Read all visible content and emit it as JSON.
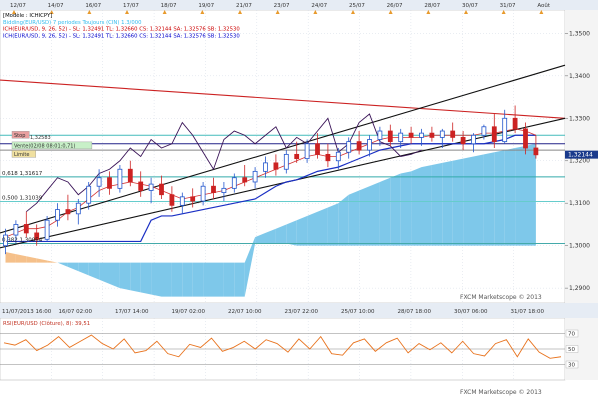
{
  "chart_data": [
    {
      "type": "candlestick",
      "title": "EUR/USD",
      "legend_lines": [
        {
          "text": "[Modèle : ICHICPY]",
          "color": "#000000"
        },
        {
          "text": "Bidding(EUR/USD) 7 periodes Toujours (CIN) 1.3/000",
          "color": "#33bbee"
        },
        {
          "text": "ICH(EUR/USD, 9, 26, 52) - SL: 1,32491  TL: 1,32660  CS: 1,32144  SA: 1,32576  SB: 1,32530",
          "color": "#cc0000"
        },
        {
          "text": "ICH(EUR/USD, 9, 26, 52) - SL: 1,32491  TL: 1,32660  CS: 1,32144  SA: 1,32576  SB: 1,32530",
          "color": "#0000cc"
        }
      ],
      "top_dates": [
        "12/07",
        "14/07",
        "16/07",
        "17/07",
        "18/07",
        "19/07",
        "21/07",
        "23/07",
        "24/07",
        "25/07",
        "26/07",
        "28/07",
        "30/07",
        "31/07",
        "Août"
      ],
      "bottom_dates": [
        "11/07/2013 16:00",
        "16/07 02:00",
        "17/07 14:00",
        "19/07 02:00",
        "22/07 10:00",
        "23/07 22:00",
        "25/07 10:00",
        "28/07 18:00",
        "30/07 06:00",
        "31/07 18:00"
      ],
      "y_ticks": [
        "1,3500",
        "1,3400",
        "1,3300",
        "1,3200",
        "1,3100",
        "1,3000",
        "1,2900"
      ],
      "ylim": [
        1.2865,
        1.3555
      ],
      "current_price": "1,32144",
      "watermark": "FXCM Marketscope © 2013",
      "level_labels": [
        {
          "text": "0,618 1,31617",
          "price": 1.3162
        },
        {
          "text": "0,500 1,31039",
          "price": 1.3104
        },
        {
          "text": "0,382 1,30054",
          "price": 1.3005
        }
      ],
      "tags": [
        {
          "text": "Stop",
          "price": 1.326,
          "color": "#e8a0a0"
        },
        {
          "text": "1,32583",
          "price": 1.3255,
          "color": ""
        },
        {
          "text": "Vente(02/08 08:01:0,71)",
          "price": 1.3235,
          "color": "#c8f0c8"
        },
        {
          "text": "Limite",
          "price": 1.3215,
          "color": "#f0e0a0"
        }
      ],
      "candles": [
        {
          "o": 1.3,
          "h": 1.304,
          "l": 1.298,
          "c": 1.3025
        },
        {
          "o": 1.3025,
          "h": 1.306,
          "l": 1.3005,
          "c": 1.305
        },
        {
          "o": 1.305,
          "h": 1.308,
          "l": 1.302,
          "c": 1.303
        },
        {
          "o": 1.303,
          "h": 1.305,
          "l": 1.3,
          "c": 1.3015
        },
        {
          "o": 1.3015,
          "h": 1.307,
          "l": 1.301,
          "c": 1.306
        },
        {
          "o": 1.306,
          "h": 1.31,
          "l": 1.3045,
          "c": 1.3085
        },
        {
          "o": 1.3085,
          "h": 1.312,
          "l": 1.306,
          "c": 1.3075
        },
        {
          "o": 1.3075,
          "h": 1.311,
          "l": 1.305,
          "c": 1.31
        },
        {
          "o": 1.31,
          "h": 1.315,
          "l": 1.3085,
          "c": 1.314
        },
        {
          "o": 1.314,
          "h": 1.318,
          "l": 1.3115,
          "c": 1.316
        },
        {
          "o": 1.316,
          "h": 1.3175,
          "l": 1.312,
          "c": 1.3135
        },
        {
          "o": 1.3135,
          "h": 1.319,
          "l": 1.3125,
          "c": 1.318
        },
        {
          "o": 1.318,
          "h": 1.32,
          "l": 1.314,
          "c": 1.315
        },
        {
          "o": 1.315,
          "h": 1.3175,
          "l": 1.3115,
          "c": 1.313
        },
        {
          "o": 1.313,
          "h": 1.316,
          "l": 1.31,
          "c": 1.3145
        },
        {
          "o": 1.3145,
          "h": 1.3165,
          "l": 1.311,
          "c": 1.312
        },
        {
          "o": 1.312,
          "h": 1.314,
          "l": 1.308,
          "c": 1.3095
        },
        {
          "o": 1.3095,
          "h": 1.3125,
          "l": 1.3075,
          "c": 1.3115
        },
        {
          "o": 1.3115,
          "h": 1.3135,
          "l": 1.309,
          "c": 1.3105
        },
        {
          "o": 1.3105,
          "h": 1.315,
          "l": 1.3095,
          "c": 1.314
        },
        {
          "o": 1.314,
          "h": 1.316,
          "l": 1.311,
          "c": 1.3125
        },
        {
          "o": 1.3125,
          "h": 1.315,
          "l": 1.3105,
          "c": 1.3135
        },
        {
          "o": 1.3135,
          "h": 1.317,
          "l": 1.3125,
          "c": 1.316
        },
        {
          "o": 1.316,
          "h": 1.319,
          "l": 1.314,
          "c": 1.315
        },
        {
          "o": 1.315,
          "h": 1.3185,
          "l": 1.3135,
          "c": 1.3175
        },
        {
          "o": 1.3175,
          "h": 1.321,
          "l": 1.316,
          "c": 1.3195
        },
        {
          "o": 1.3195,
          "h": 1.3215,
          "l": 1.3165,
          "c": 1.318
        },
        {
          "o": 1.318,
          "h": 1.3225,
          "l": 1.317,
          "c": 1.3215
        },
        {
          "o": 1.3215,
          "h": 1.3245,
          "l": 1.3195,
          "c": 1.3205
        },
        {
          "o": 1.3205,
          "h": 1.325,
          "l": 1.3195,
          "c": 1.324
        },
        {
          "o": 1.324,
          "h": 1.3265,
          "l": 1.3205,
          "c": 1.3215
        },
        {
          "o": 1.3215,
          "h": 1.324,
          "l": 1.3185,
          "c": 1.32
        },
        {
          "o": 1.32,
          "h": 1.323,
          "l": 1.318,
          "c": 1.322
        },
        {
          "o": 1.322,
          "h": 1.3255,
          "l": 1.3205,
          "c": 1.3245
        },
        {
          "o": 1.3245,
          "h": 1.327,
          "l": 1.3215,
          "c": 1.3225
        },
        {
          "o": 1.3225,
          "h": 1.326,
          "l": 1.321,
          "c": 1.325
        },
        {
          "o": 1.325,
          "h": 1.328,
          "l": 1.3235,
          "c": 1.327
        },
        {
          "o": 1.327,
          "h": 1.3285,
          "l": 1.3235,
          "c": 1.3245
        },
        {
          "o": 1.3245,
          "h": 1.3275,
          "l": 1.323,
          "c": 1.3265
        },
        {
          "o": 1.3265,
          "h": 1.328,
          "l": 1.324,
          "c": 1.3255
        },
        {
          "o": 1.3255,
          "h": 1.3275,
          "l": 1.3235,
          "c": 1.3265
        },
        {
          "o": 1.3265,
          "h": 1.328,
          "l": 1.3245,
          "c": 1.3255
        },
        {
          "o": 1.3255,
          "h": 1.3275,
          "l": 1.323,
          "c": 1.327
        },
        {
          "o": 1.327,
          "h": 1.329,
          "l": 1.3245,
          "c": 1.3255
        },
        {
          "o": 1.3255,
          "h": 1.327,
          "l": 1.3225,
          "c": 1.324
        },
        {
          "o": 1.324,
          "h": 1.3265,
          "l": 1.322,
          "c": 1.326
        },
        {
          "o": 1.326,
          "h": 1.3285,
          "l": 1.325,
          "c": 1.328
        },
        {
          "o": 1.328,
          "h": 1.331,
          "l": 1.323,
          "c": 1.3245
        },
        {
          "o": 1.3245,
          "h": 1.332,
          "l": 1.324,
          "c": 1.33
        },
        {
          "o": 1.33,
          "h": 1.333,
          "l": 1.3265,
          "c": 1.3275
        },
        {
          "o": 1.3275,
          "h": 1.329,
          "l": 1.3215,
          "c": 1.323
        },
        {
          "o": 1.323,
          "h": 1.326,
          "l": 1.3205,
          "c": 1.3214
        }
      ],
      "bull_color": "#2255cc",
      "bear_color": "#cc2222",
      "lines": [
        {
          "name": "",
          "color": "#cc2222",
          "values": [
            1.339,
            1.33
          ]
        },
        {
          "name": "",
          "color": "#111111",
          "values": [
            1.303,
            1.3425
          ]
        },
        {
          "name": "",
          "color": "#111111",
          "values": [
            1.2995,
            1.33
          ]
        }
      ],
      "price_levels": [
        {
          "price": 1.326,
          "color": "#44bbbb"
        },
        {
          "price": 1.324,
          "color": "#222288"
        },
        {
          "price": 1.3225,
          "color": "#888888"
        },
        {
          "price": 1.3162,
          "color": "#33aaaa"
        },
        {
          "price": 1.3104,
          "color": "#66cccc"
        },
        {
          "price": 1.3005,
          "color": "#44aaaa"
        }
      ],
      "kumo_color": "#7ec8ea",
      "kumo_bear_color": "#f5c08a",
      "span_a": [
        1.296,
        1.296,
        1.296,
        1.296,
        1.296,
        1.296,
        1.296,
        1.296,
        1.296,
        1.296,
        1.296,
        1.296,
        1.296,
        1.296,
        1.296,
        1.296,
        1.296,
        1.296,
        1.296,
        1.296,
        1.296,
        1.296,
        1.296,
        1.296,
        1.302,
        1.303,
        1.304,
        1.305,
        1.306,
        1.307,
        1.308,
        1.309,
        1.31,
        1.312,
        1.313,
        1.314,
        1.315,
        1.316,
        1.317,
        1.3175,
        1.3185,
        1.319,
        1.3195,
        1.32,
        1.3205,
        1.321,
        1.3215,
        1.322,
        1.3225,
        1.323,
        1.3235,
        1.324
      ],
      "span_b": [
        1.2985,
        1.298,
        1.2975,
        1.297,
        1.2965,
        1.296,
        1.295,
        1.294,
        1.293,
        1.292,
        1.291,
        1.29,
        1.2895,
        1.289,
        1.2885,
        1.288,
        1.288,
        1.288,
        1.288,
        1.288,
        1.288,
        1.288,
        1.288,
        1.288,
        1.3005,
        1.3005,
        1.3005,
        1.3005,
        1.3,
        1.3,
        1.3,
        1.3,
        1.3,
        1.3,
        1.3,
        1.3,
        1.3,
        1.3,
        1.3,
        1.3,
        1.3,
        1.3,
        1.3,
        1.3,
        1.3,
        1.3,
        1.3,
        1.3,
        1.3,
        1.3,
        1.3,
        1.3
      ],
      "kijun": [
        1.301,
        1.301,
        1.301,
        1.301,
        1.301,
        1.301,
        1.301,
        1.301,
        1.301,
        1.301,
        1.301,
        1.301,
        1.301,
        1.301,
        1.306,
        1.307,
        1.307,
        1.3075,
        1.308,
        1.3085,
        1.309,
        1.3095,
        1.31,
        1.3105,
        1.311,
        1.3125,
        1.314,
        1.315,
        1.3155,
        1.3165,
        1.3175,
        1.318,
        1.3185,
        1.3195,
        1.3205,
        1.3215,
        1.3225,
        1.323,
        1.3235,
        1.324,
        1.324,
        1.324,
        1.324,
        1.324,
        1.324,
        1.324,
        1.324,
        1.3245,
        1.325,
        1.326,
        1.326,
        1.326
      ],
      "tenkan": [
        1.302,
        1.303,
        1.304,
        1.304,
        1.3045,
        1.306,
        1.308,
        1.309,
        1.311,
        1.313,
        1.314,
        1.3145,
        1.315,
        1.3145,
        1.314,
        1.313,
        1.312,
        1.311,
        1.3115,
        1.312,
        1.3125,
        1.313,
        1.314,
        1.315,
        1.316,
        1.317,
        1.318,
        1.319,
        1.32,
        1.321,
        1.3215,
        1.321,
        1.321,
        1.322,
        1.323,
        1.324,
        1.325,
        1.3255,
        1.3255,
        1.3255,
        1.3255,
        1.326,
        1.326,
        1.326,
        1.326,
        1.326,
        1.3265,
        1.3265,
        1.327,
        1.3275,
        1.327,
        1.326
      ],
      "chikou": [
        1.308,
        1.31,
        1.313,
        1.316,
        1.315,
        1.312,
        1.314,
        1.317,
        1.318,
        1.32,
        1.323,
        1.321,
        1.325,
        1.323,
        1.324,
        1.329,
        1.326,
        1.322,
        1.318,
        1.325,
        1.327,
        1.326,
        1.324,
        1.326,
        1.328,
        1.323,
        1.3255,
        1.324,
        1.327,
        1.33,
        1.322,
        1.324,
        1.329,
        1.331,
        1.3245,
        1.3235,
        1.321,
        1.3215,
        1.3225
      ],
      "rsi": {
        "label": "RSI(EUR/USD (Clôture), 8): 39,51",
        "ticks": [
          "70",
          "50",
          "30"
        ],
        "ylim": [
          10,
          90
        ],
        "levels": [
          {
            "value": 70,
            "color": "#888888"
          },
          {
            "value": 50,
            "color": "#888888"
          },
          {
            "value": 30,
            "color": "#888888"
          }
        ],
        "color": "#e8731e",
        "values": [
          58,
          55,
          62,
          48,
          55,
          66,
          52,
          60,
          68,
          57,
          50,
          63,
          45,
          48,
          60,
          44,
          40,
          56,
          52,
          64,
          47,
          52,
          60,
          50,
          62,
          57,
          46,
          63,
          50,
          66,
          44,
          42,
          58,
          63,
          47,
          58,
          64,
          45,
          57,
          49,
          58,
          45,
          60,
          44,
          41,
          57,
          62,
          40,
          63,
          46,
          38,
          40
        ]
      }
    }
  ]
}
